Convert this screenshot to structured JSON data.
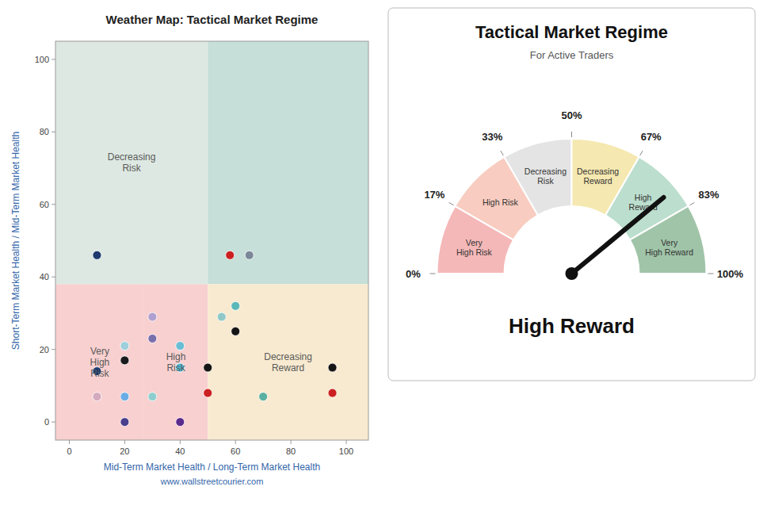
{
  "chart_data": [
    {
      "type": "scatter",
      "title": "Weather Map: Tactical Market Regime",
      "xlabel": "Mid-Term Market Health / Long-Term Market Health",
      "ylabel": "Short-Term Market Health / Mid-Term Market Health",
      "annotation": "www.wallstreetcourier.com",
      "x": [
        10,
        10,
        10,
        20,
        20,
        20,
        20,
        30,
        30,
        30,
        40,
        40,
        40,
        50,
        50,
        55,
        58,
        60,
        60,
        65,
        70,
        95,
        95
      ],
      "values": [
        46,
        14,
        7,
        21,
        17,
        7,
        0,
        29,
        23,
        7,
        0,
        21,
        15,
        15,
        8,
        29,
        46,
        32,
        25,
        46,
        7,
        15,
        8
      ],
      "colors": [
        "#1e3a6e",
        "#1e3a6e",
        "#d4aabe",
        "#9ecfdb",
        "#1a1a1a",
        "#6aace4",
        "#4a3f8c",
        "#b0a0d0",
        "#7a6fad",
        "#8ecece",
        "#5a2a8c",
        "#6abed4",
        "#4ab8d4",
        "#151515",
        "#cc2020",
        "#90c8c8",
        "#cc2020",
        "#5ab8b8",
        "#151515",
        "#7a8898",
        "#5ab0a0",
        "#151515",
        "#cc2020"
      ],
      "regions": [
        {
          "x0": -5,
          "x1": 50,
          "y0": 38,
          "y1": 105,
          "color": "#dde8e2",
          "label": "Decreasing\nRisk"
        },
        {
          "x0": 50,
          "x1": 108,
          "y0": 38,
          "y1": 105,
          "color": "#c6dfd8"
        },
        {
          "x0": -5,
          "x1": 27,
          "y0": -5,
          "y1": 38,
          "color": "#f8d0d0",
          "label": "Very\nHigh\nRisk"
        },
        {
          "x0": 27,
          "x1": 50,
          "y0": -5,
          "y1": 38,
          "color": "#f8d0d0",
          "label": "High\nRisk"
        },
        {
          "x0": 50,
          "x1": 108,
          "y0": -5,
          "y1": 38,
          "color": "#f8ead0",
          "label": "Decreasing\nReward"
        }
      ],
      "xlim": [
        -5,
        108
      ],
      "ylim": [
        -5,
        105
      ],
      "xticks": [
        0,
        20,
        40,
        60,
        80,
        100
      ],
      "yticks": [
        0,
        20,
        40,
        60,
        80,
        100
      ],
      "grid": false
    },
    {
      "type": "gauge",
      "title": "Tactical Market Regime",
      "subtitle": "For Active Traders",
      "annotation": "High Reward",
      "value": 78,
      "categories": [
        "Very\nHigh Risk",
        "High Risk",
        "Decreasing\nRisk",
        "Decreasing\nReward",
        "High\nReward",
        "Very\nHigh Reward"
      ],
      "starts": [
        0,
        16.7,
        33.3,
        50,
        66.7,
        83.3
      ],
      "ends": [
        16.7,
        33.3,
        50,
        66.7,
        83.3,
        100
      ],
      "colors": [
        "#f5b8b8",
        "#f8ccc0",
        "#e4e4e4",
        "#f5e8b0",
        "#bcdece",
        "#a0c4a8"
      ],
      "ylim": [
        0,
        100
      ],
      "yticks": [
        {
          "value": 0,
          "label": "0%"
        },
        {
          "value": 16.7,
          "label": "17%"
        },
        {
          "value": 33.3,
          "label": "33%"
        },
        {
          "value": 50,
          "label": "50%"
        },
        {
          "value": 66.7,
          "label": "67%"
        },
        {
          "value": 83.3,
          "label": "83%"
        },
        {
          "value": 100,
          "label": "100%"
        }
      ]
    }
  ]
}
